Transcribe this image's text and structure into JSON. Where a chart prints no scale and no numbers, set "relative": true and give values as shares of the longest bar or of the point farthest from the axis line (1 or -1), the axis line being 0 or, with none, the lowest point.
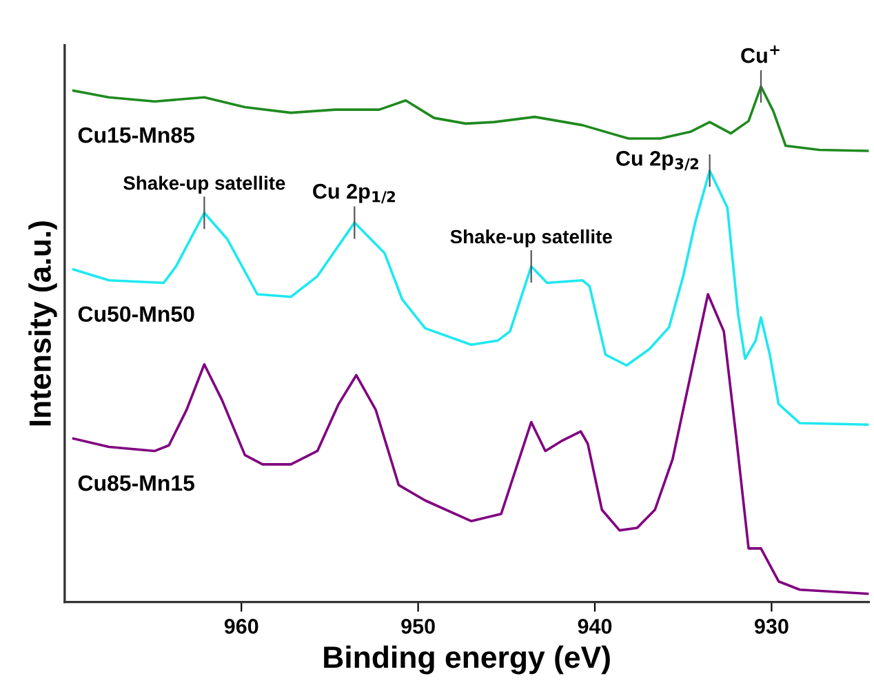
{
  "chart_data": {
    "type": "line",
    "relative": true,
    "xlabel": "Binding energy (eV)",
    "ylabel": "Intensity (a.u.)",
    "xlim": [
      970,
      924.5
    ],
    "xticks": [
      960,
      950,
      940,
      930
    ],
    "legend": false,
    "grid": false,
    "marker": "none",
    "line_style": "solid",
    "series": [
      {
        "name": "Cu15-Mn85",
        "color": "#1f8a1f",
        "x": [
          969.5,
          967.5,
          964.9,
          962.1,
          959.8,
          957.2,
          954.7,
          952.2,
          950.7,
          949.1,
          947.3,
          945.7,
          943.4,
          940.7,
          938.1,
          936.3,
          934.6,
          933.5,
          932.3,
          931.3,
          930.6,
          929.9,
          929.2,
          927.3,
          924.5
        ],
        "values": [
          0.992,
          0.979,
          0.971,
          0.979,
          0.96,
          0.949,
          0.955,
          0.955,
          0.973,
          0.939,
          0.928,
          0.931,
          0.941,
          0.925,
          0.899,
          0.899,
          0.912,
          0.931,
          0.909,
          0.933,
          1.0,
          0.952,
          0.885,
          0.877,
          0.875
        ]
      },
      {
        "name": "Cu50-Mn50",
        "color": "#1ee8f0",
        "x": [
          969.5,
          967.5,
          964.4,
          963.7,
          962.1,
          960.8,
          959.1,
          957.2,
          955.7,
          953.6,
          951.9,
          950.9,
          949.6,
          947.0,
          945.5,
          944.8,
          943.6,
          942.7,
          940.7,
          940.3,
          939.4,
          938.2,
          936.9,
          935.8,
          935.0,
          934.3,
          933.5,
          932.5,
          931.9,
          931.5,
          930.9,
          930.6,
          930.1,
          929.6,
          928.4,
          924.5
        ],
        "values": [
          0.645,
          0.624,
          0.619,
          0.651,
          0.755,
          0.704,
          0.597,
          0.592,
          0.632,
          0.736,
          0.677,
          0.587,
          0.531,
          0.499,
          0.507,
          0.525,
          0.651,
          0.619,
          0.624,
          0.613,
          0.48,
          0.459,
          0.491,
          0.533,
          0.632,
          0.739,
          0.837,
          0.765,
          0.56,
          0.472,
          0.507,
          0.552,
          0.48,
          0.384,
          0.347,
          0.344
        ]
      },
      {
        "name": "Cu85-Mn15",
        "color": "#800080",
        "x": [
          969.5,
          967.5,
          964.9,
          964.1,
          963.1,
          962.1,
          961.1,
          959.8,
          958.8,
          957.2,
          955.7,
          954.5,
          953.5,
          952.4,
          951.1,
          949.6,
          947.0,
          945.3,
          943.6,
          942.8,
          941.9,
          940.8,
          940.4,
          939.6,
          938.6,
          937.6,
          936.6,
          935.6,
          934.6,
          933.6,
          932.7,
          932.0,
          931.3,
          930.6,
          929.6,
          928.4,
          924.5
        ],
        "values": [
          0.317,
          0.301,
          0.293,
          0.304,
          0.373,
          0.461,
          0.392,
          0.285,
          0.267,
          0.267,
          0.293,
          0.384,
          0.44,
          0.373,
          0.227,
          0.197,
          0.157,
          0.171,
          0.349,
          0.293,
          0.312,
          0.331,
          0.307,
          0.179,
          0.139,
          0.144,
          0.179,
          0.277,
          0.437,
          0.597,
          0.525,
          0.32,
          0.104,
          0.104,
          0.04,
          0.024,
          0.016
        ]
      }
    ],
    "annotations": [
      {
        "text": "Shake-up satellite",
        "x": 962.1,
        "y": 0.755
      },
      {
        "text": "Cu 2p$_{1/2}$",
        "x": 953.6,
        "y": 0.736
      },
      {
        "text": "Shake-up satellite",
        "x": 943.6,
        "y": 0.651
      },
      {
        "text": "Cu 2p$_{3/2}$",
        "x": 933.5,
        "y": 0.837
      },
      {
        "text": "Cu$^{+}$",
        "x": 930.6,
        "y": 1.0
      }
    ]
  }
}
